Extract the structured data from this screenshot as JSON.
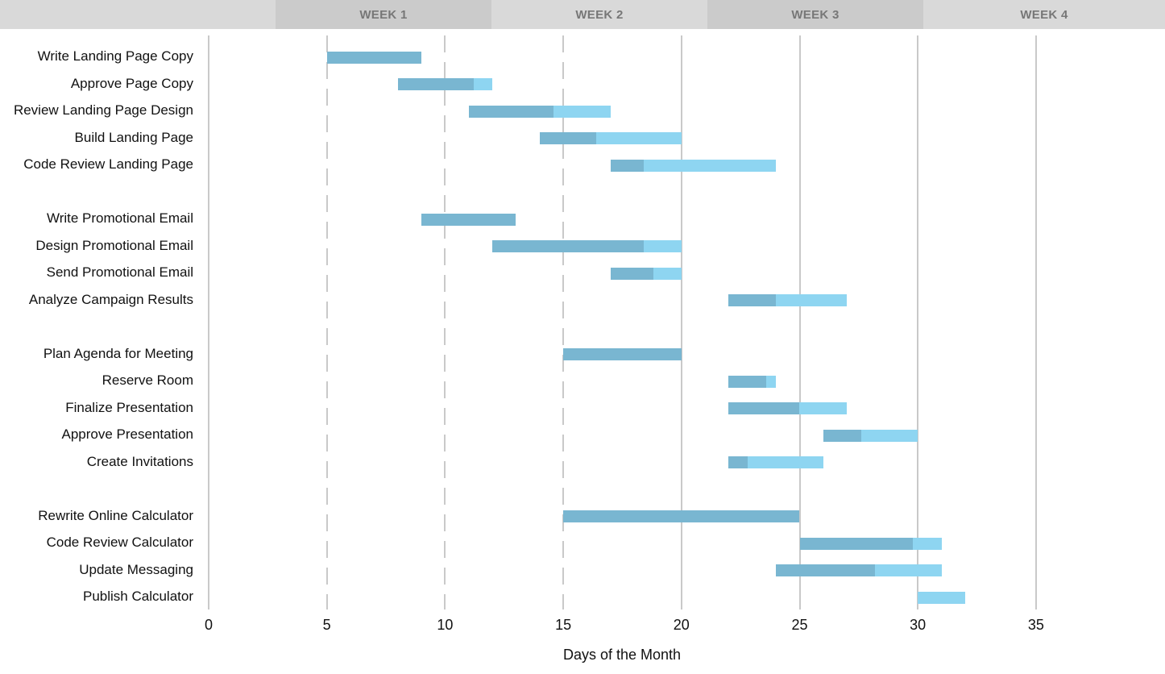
{
  "header": {
    "weeks": [
      {
        "label": ""
      },
      {
        "label": "WEEK 1"
      },
      {
        "label": "WEEK 2"
      },
      {
        "label": "WEEK 3"
      },
      {
        "label": "WEEK 4"
      }
    ]
  },
  "chart_data": {
    "type": "bar",
    "subtype": "gantt",
    "title": "",
    "xlabel": "Days of the Month",
    "x_ticks": [
      0,
      5,
      10,
      15,
      20,
      25,
      30,
      35
    ],
    "xlim": [
      0,
      40.5
    ],
    "grid": "vertical",
    "dashed_gridline_days": [
      5,
      10,
      15
    ],
    "solid_gridline_days": [
      20,
      25,
      30,
      35
    ],
    "legend": "none",
    "colors": {
      "complete": "#79b6d1",
      "remaining": "#8ed5f1",
      "gridline": "#c9c9c9",
      "week_band_light": "#d9d9d9",
      "week_band_dark": "#cbcbcb",
      "week_text": "#777777"
    },
    "groups": [
      {
        "name": "landing-page",
        "tasks": [
          {
            "label": "Write Landing Page Copy",
            "start": 5,
            "end": 9,
            "percent_complete": 100
          },
          {
            "label": "Approve Page Copy",
            "start": 8,
            "end": 12,
            "percent_complete": 80
          },
          {
            "label": "Review Landing Page Design",
            "start": 11,
            "end": 17,
            "percent_complete": 60
          },
          {
            "label": "Build Landing Page",
            "start": 14,
            "end": 20,
            "percent_complete": 40
          },
          {
            "label": "Code Review Landing Page",
            "start": 17,
            "end": 24,
            "percent_complete": 20
          }
        ]
      },
      {
        "name": "promotional-email",
        "tasks": [
          {
            "label": "Write Promotional Email",
            "start": 9,
            "end": 13,
            "percent_complete": 100
          },
          {
            "label": "Design Promotional Email",
            "start": 12,
            "end": 20,
            "percent_complete": 80
          },
          {
            "label": "Send Promotional Email",
            "start": 17,
            "end": 20,
            "percent_complete": 60
          },
          {
            "label": "Analyze Campaign Results",
            "start": 22,
            "end": 27,
            "percent_complete": 40
          }
        ]
      },
      {
        "name": "meeting",
        "tasks": [
          {
            "label": "Plan Agenda for Meeting",
            "start": 15,
            "end": 20,
            "percent_complete": 100
          },
          {
            "label": "Reserve Room",
            "start": 22,
            "end": 24,
            "percent_complete": 80
          },
          {
            "label": "Finalize Presentation",
            "start": 22,
            "end": 27,
            "percent_complete": 60
          },
          {
            "label": "Approve Presentation",
            "start": 26,
            "end": 30,
            "percent_complete": 40
          },
          {
            "label": "Create Invitations",
            "start": 22,
            "end": 26,
            "percent_complete": 20
          }
        ]
      },
      {
        "name": "calculator",
        "tasks": [
          {
            "label": "Rewrite Online Calculator",
            "start": 15,
            "end": 25,
            "percent_complete": 100
          },
          {
            "label": "Code Review Calculator",
            "start": 25,
            "end": 31,
            "percent_complete": 80
          },
          {
            "label": "Update Messaging",
            "start": 24,
            "end": 31,
            "percent_complete": 60
          },
          {
            "label": "Publish Calculator",
            "start": 30,
            "end": 32,
            "percent_complete": 0
          }
        ]
      }
    ]
  }
}
